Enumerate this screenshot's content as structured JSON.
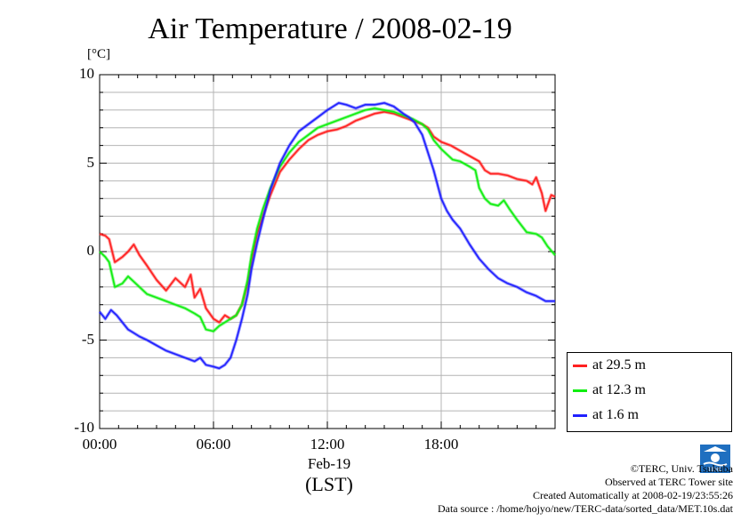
{
  "title": "Air Temperature / 2008-02-19",
  "unit_label": "[°C]",
  "x_date_label": "Feb-19",
  "x_axis_label": "(LST)",
  "credits": {
    "copyright": "©TERC, Univ. Tsukuba",
    "site": "Observed at TERC Tower site",
    "created": "Created Automatically at 2008-02-19/23:55:26",
    "source": "Data source : /home/hojyo/new/TERC-data/sorted_data/MET.10s.dat"
  },
  "logo_text": "TERC",
  "chart_data": {
    "type": "line",
    "title": "Air Temperature / 2008-02-19",
    "ylabel": "[°C]",
    "xlabel": "(LST)",
    "xlim": [
      0,
      24
    ],
    "ylim": [
      -10,
      10
    ],
    "x_ticks": [
      {
        "value": 0,
        "label": "00:00"
      },
      {
        "value": 6,
        "label": "06:00"
      },
      {
        "value": 12,
        "label": "12:00"
      },
      {
        "value": 18,
        "label": "18:00"
      }
    ],
    "y_ticks": [
      {
        "value": 10,
        "label": "10"
      },
      {
        "value": 5,
        "label": "5"
      },
      {
        "value": 0,
        "label": "0"
      },
      {
        "value": -5,
        "label": "-5"
      },
      {
        "value": -10,
        "label": "-10"
      }
    ],
    "grid": true,
    "legend_position": "right",
    "series": [
      {
        "name": "at 29.5 m",
        "color": "#ff2020",
        "x": [
          0,
          0.3,
          0.5,
          0.8,
          1.2,
          1.5,
          1.8,
          2.1,
          2.5,
          3.0,
          3.5,
          4.0,
          4.5,
          4.8,
          5.0,
          5.3,
          5.6,
          6.0,
          6.3,
          6.6,
          6.9,
          7.2,
          7.5,
          7.8,
          8.0,
          8.3,
          8.6,
          9.0,
          9.5,
          10.0,
          10.5,
          11.0,
          11.5,
          12.0,
          12.5,
          13.0,
          13.5,
          14.0,
          14.5,
          15.0,
          15.5,
          16.0,
          16.5,
          17.0,
          17.3,
          17.6,
          18.0,
          18.5,
          19.0,
          19.5,
          20.0,
          20.3,
          20.6,
          21.0,
          21.5,
          22.0,
          22.5,
          22.8,
          23.0,
          23.3,
          23.5,
          23.8,
          24.0
        ],
        "y": [
          1.0,
          0.9,
          0.7,
          -0.6,
          -0.3,
          0.0,
          0.4,
          -0.2,
          -0.8,
          -1.6,
          -2.2,
          -1.5,
          -2.0,
          -1.3,
          -2.6,
          -2.1,
          -3.2,
          -3.8,
          -4.0,
          -3.6,
          -3.8,
          -3.6,
          -3.0,
          -1.8,
          -0.5,
          1.0,
          2.0,
          3.2,
          4.5,
          5.2,
          5.8,
          6.3,
          6.6,
          6.8,
          6.9,
          7.1,
          7.4,
          7.6,
          7.8,
          7.9,
          7.8,
          7.6,
          7.4,
          7.2,
          7.0,
          6.5,
          6.2,
          6.0,
          5.7,
          5.4,
          5.1,
          4.6,
          4.4,
          4.4,
          4.3,
          4.1,
          4.0,
          3.8,
          4.2,
          3.3,
          2.3,
          3.2,
          3.1
        ]
      },
      {
        "name": "at 12.3 m",
        "color": "#10ee10",
        "x": [
          0,
          0.3,
          0.5,
          0.8,
          1.2,
          1.5,
          1.8,
          2.1,
          2.5,
          3.0,
          3.5,
          4.0,
          4.5,
          5.0,
          5.3,
          5.6,
          6.0,
          6.3,
          6.6,
          6.9,
          7.2,
          7.5,
          7.8,
          8.0,
          8.3,
          8.6,
          9.0,
          9.5,
          10.0,
          10.5,
          11.0,
          11.5,
          12.0,
          12.5,
          13.0,
          13.5,
          14.0,
          14.5,
          15.0,
          15.5,
          16.0,
          16.5,
          17.0,
          17.3,
          17.6,
          18.0,
          18.3,
          18.6,
          19.0,
          19.5,
          19.8,
          20.0,
          20.3,
          20.6,
          21.0,
          21.3,
          21.6,
          22.0,
          22.5,
          23.0,
          23.3,
          23.6,
          24.0
        ],
        "y": [
          0.0,
          -0.3,
          -0.6,
          -2.0,
          -1.8,
          -1.4,
          -1.7,
          -2.0,
          -2.4,
          -2.6,
          -2.8,
          -3.0,
          -3.2,
          -3.5,
          -3.7,
          -4.4,
          -4.5,
          -4.2,
          -4.0,
          -3.8,
          -3.6,
          -3.0,
          -1.6,
          -0.2,
          1.3,
          2.4,
          3.6,
          4.8,
          5.6,
          6.2,
          6.6,
          7.0,
          7.2,
          7.4,
          7.6,
          7.8,
          8.0,
          8.1,
          8.0,
          7.9,
          7.7,
          7.5,
          7.2,
          6.9,
          6.3,
          5.8,
          5.5,
          5.2,
          5.1,
          4.8,
          4.6,
          3.6,
          3.0,
          2.7,
          2.6,
          2.9,
          2.4,
          1.8,
          1.1,
          1.0,
          0.8,
          0.3,
          -0.2
        ]
      },
      {
        "name": "at 1.6 m",
        "color": "#2020ff",
        "x": [
          0,
          0.3,
          0.6,
          0.9,
          1.2,
          1.5,
          1.8,
          2.1,
          2.5,
          3.0,
          3.5,
          4.0,
          4.5,
          5.0,
          5.3,
          5.6,
          6.0,
          6.3,
          6.6,
          6.9,
          7.2,
          7.5,
          7.8,
          8.0,
          8.3,
          8.6,
          9.0,
          9.5,
          10.0,
          10.5,
          11.0,
          11.5,
          12.0,
          12.3,
          12.6,
          13.0,
          13.5,
          14.0,
          14.5,
          15.0,
          15.5,
          16.0,
          16.3,
          16.6,
          17.0,
          17.3,
          17.6,
          18.0,
          18.3,
          18.6,
          19.0,
          19.5,
          20.0,
          20.5,
          21.0,
          21.5,
          22.0,
          22.5,
          23.0,
          23.5,
          24.0
        ],
        "y": [
          -3.4,
          -3.8,
          -3.3,
          -3.6,
          -4.0,
          -4.4,
          -4.6,
          -4.8,
          -5.0,
          -5.3,
          -5.6,
          -5.8,
          -6.0,
          -6.2,
          -6.0,
          -6.4,
          -6.5,
          -6.6,
          -6.4,
          -6.0,
          -5.0,
          -3.8,
          -2.4,
          -1.0,
          0.5,
          1.8,
          3.5,
          5.0,
          6.0,
          6.8,
          7.2,
          7.6,
          8.0,
          8.2,
          8.4,
          8.3,
          8.1,
          8.3,
          8.3,
          8.4,
          8.2,
          7.8,
          7.6,
          7.3,
          6.6,
          5.6,
          4.6,
          3.0,
          2.3,
          1.8,
          1.3,
          0.4,
          -0.4,
          -1.0,
          -1.5,
          -1.8,
          -2.0,
          -2.3,
          -2.5,
          -2.8,
          -2.8
        ]
      }
    ]
  }
}
